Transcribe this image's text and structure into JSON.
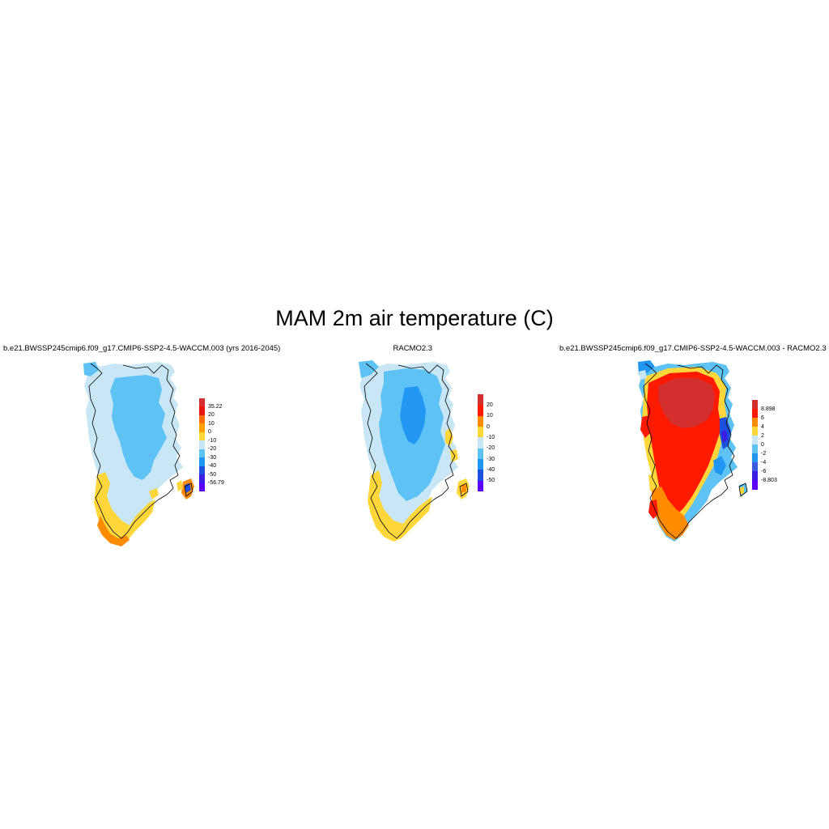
{
  "title": "MAM 2m air temperature (C)",
  "panels": [
    {
      "id": "model",
      "title": "b.e21.BWSSP245cmip6.f09_g17.CMIP6-SSP2-4.5-WACCM.003 (yrs 2016-2045)",
      "colorbar": {
        "labels": [
          "35.22",
          "20",
          "10",
          "0",
          "-10",
          "-20",
          "-30",
          "-40",
          "-50",
          "-56.79"
        ],
        "colors": [
          "#d32f2f",
          "#e8160f",
          "#ff6f00",
          "#ffa000",
          "#ffd73a",
          "#c8e6f5",
          "#5ec2f5",
          "#2196f3",
          "#1e50e0",
          "#3a1ee6",
          "#5a00ff"
        ]
      }
    },
    {
      "id": "racmo",
      "title": "RACMO2.3",
      "colorbar": {
        "labels": [
          "20",
          "10",
          "0",
          "-10",
          "-20",
          "-30",
          "-40",
          "-50"
        ],
        "colors": [
          "#d32f2f",
          "#ff1a00",
          "#ff8c00",
          "#ffd73a",
          "#c8e6f5",
          "#5ec2f5",
          "#2196f3",
          "#1e50e0",
          "#5a00ff"
        ]
      }
    },
    {
      "id": "difference",
      "title": "b.e21.BWSSP245cmip6.f09_g17.CMIP6-SSP2-4.5-WACCM.003 - RACMO2.3",
      "colorbar": {
        "labels": [
          "8.898",
          "6",
          "4",
          "2",
          "0",
          "-2",
          "-4",
          "-6",
          "-8.803"
        ],
        "colors": [
          "#d32f2f",
          "#ff1a00",
          "#ff8c00",
          "#ffd73a",
          "#c8e6f5",
          "#5ec2f5",
          "#2196f3",
          "#3a5ae0",
          "#3a1ee6",
          "#5a00ff"
        ]
      }
    }
  ]
}
